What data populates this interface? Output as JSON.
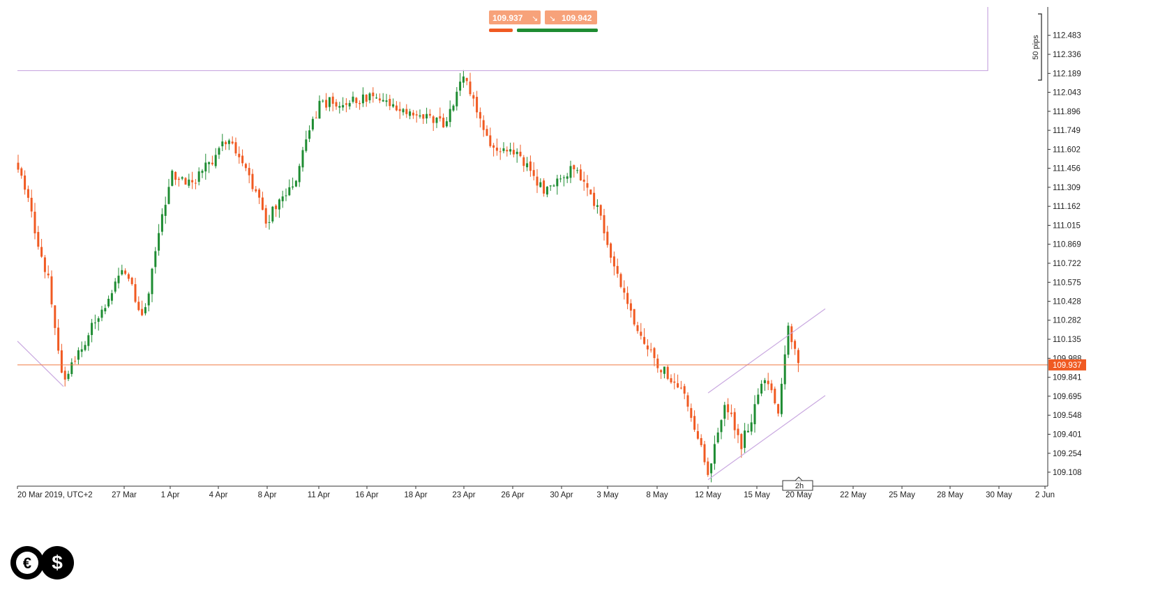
{
  "chart_data": {
    "type": "candlestick",
    "title": "",
    "xlabel": "",
    "ylabel": "",
    "timezone": "UTC+2",
    "y_ticks": [
      109.108,
      109.254,
      109.401,
      109.548,
      109.695,
      109.841,
      109.988,
      110.135,
      110.282,
      110.428,
      110.575,
      110.722,
      110.869,
      111.015,
      111.162,
      111.309,
      111.456,
      111.602,
      111.749,
      111.896,
      112.043,
      112.189,
      112.336,
      112.483
    ],
    "ylim": [
      109.0,
      112.6
    ],
    "x_ticks": [
      "20 Mar 2019, UTC+2",
      "27 Mar",
      "1 Apr",
      "4 Apr",
      "8 Apr",
      "11 Apr",
      "16 Apr",
      "18 Apr",
      "23 Apr",
      "26 Apr",
      "30 Apr",
      "3 May",
      "8 May",
      "12 May",
      "15 May",
      "20 May",
      "22 May",
      "25 May",
      "28 May",
      "30 May",
      "2 Jun"
    ],
    "current_price": 109.937,
    "current_price_label": "109.937",
    "bid_label": "109.937",
    "ask_label": "109.942",
    "timeframe_label": "2h",
    "pips_label": "50 pips",
    "resistance_level": 112.21,
    "anchors": [
      {
        "label": "20 Mar 2019, UTC+2",
        "price": 111.5
      },
      {
        "label": "22 Mar",
        "price": 110.6
      },
      {
        "label": "25 Mar",
        "price": 109.8
      },
      {
        "label": "27 Mar",
        "price": 110.7
      },
      {
        "label": "29 Mar",
        "price": 110.3
      },
      {
        "label": "1 Apr",
        "price": 111.4
      },
      {
        "label": "3 Apr",
        "price": 111.35
      },
      {
        "label": "5 Apr",
        "price": 111.7
      },
      {
        "label": "8 Apr",
        "price": 111.05
      },
      {
        "label": "10 Apr",
        "price": 111.4
      },
      {
        "label": "11 Apr",
        "price": 111.95
      },
      {
        "label": "16 Apr",
        "price": 112.0
      },
      {
        "label": "18 Apr",
        "price": 111.88
      },
      {
        "label": "22 Apr",
        "price": 111.8
      },
      {
        "label": "23 Apr",
        "price": 112.2
      },
      {
        "label": "24 Apr",
        "price": 111.65
      },
      {
        "label": "26 Apr",
        "price": 111.6
      },
      {
        "label": "29 Apr",
        "price": 111.3
      },
      {
        "label": "1 May",
        "price": 111.45
      },
      {
        "label": "2 May",
        "price": 111.15
      },
      {
        "label": "3 May",
        "price": 110.85
      },
      {
        "label": "6 May",
        "price": 110.25
      },
      {
        "label": "8 May",
        "price": 109.95
      },
      {
        "label": "10 May",
        "price": 109.75
      },
      {
        "label": "12 May",
        "price": 109.12
      },
      {
        "label": "13 May",
        "price": 109.65
      },
      {
        "label": "14 May",
        "price": 109.3
      },
      {
        "label": "16 May",
        "price": 109.85
      },
      {
        "label": "17 May",
        "price": 109.55
      },
      {
        "label": "18 May",
        "price": 110.2
      },
      {
        "label": "20 May",
        "price": 109.937
      }
    ],
    "channel_lower": [
      {
        "label": "12 May",
        "price": 109.05
      },
      {
        "label": "22 May",
        "price": 109.7
      }
    ],
    "channel_upper": [
      {
        "label": "12 May",
        "price": 109.72
      },
      {
        "label": "22 May",
        "price": 110.37
      }
    ],
    "diagonal_line": [
      {
        "label": "20 Mar 2019, UTC+2",
        "price": 110.12
      },
      {
        "label": "25 Mar",
        "price": 109.77
      }
    ]
  },
  "colors": {
    "up": "#1e8c32",
    "down": "#f05a22",
    "price_line": "#f07a40",
    "drawings": "#c9a8e0",
    "axis": "#333333",
    "text": "#222222",
    "badge": "#f7a27a",
    "badge_bar_bid": "#f05a22",
    "badge_bar_ask": "#1e8c32"
  },
  "icons": {
    "bid_arrow": "arrow-down-right-icon",
    "ask_arrow": "arrow-down-right-icon",
    "logo": "euro-dollar-logo"
  }
}
